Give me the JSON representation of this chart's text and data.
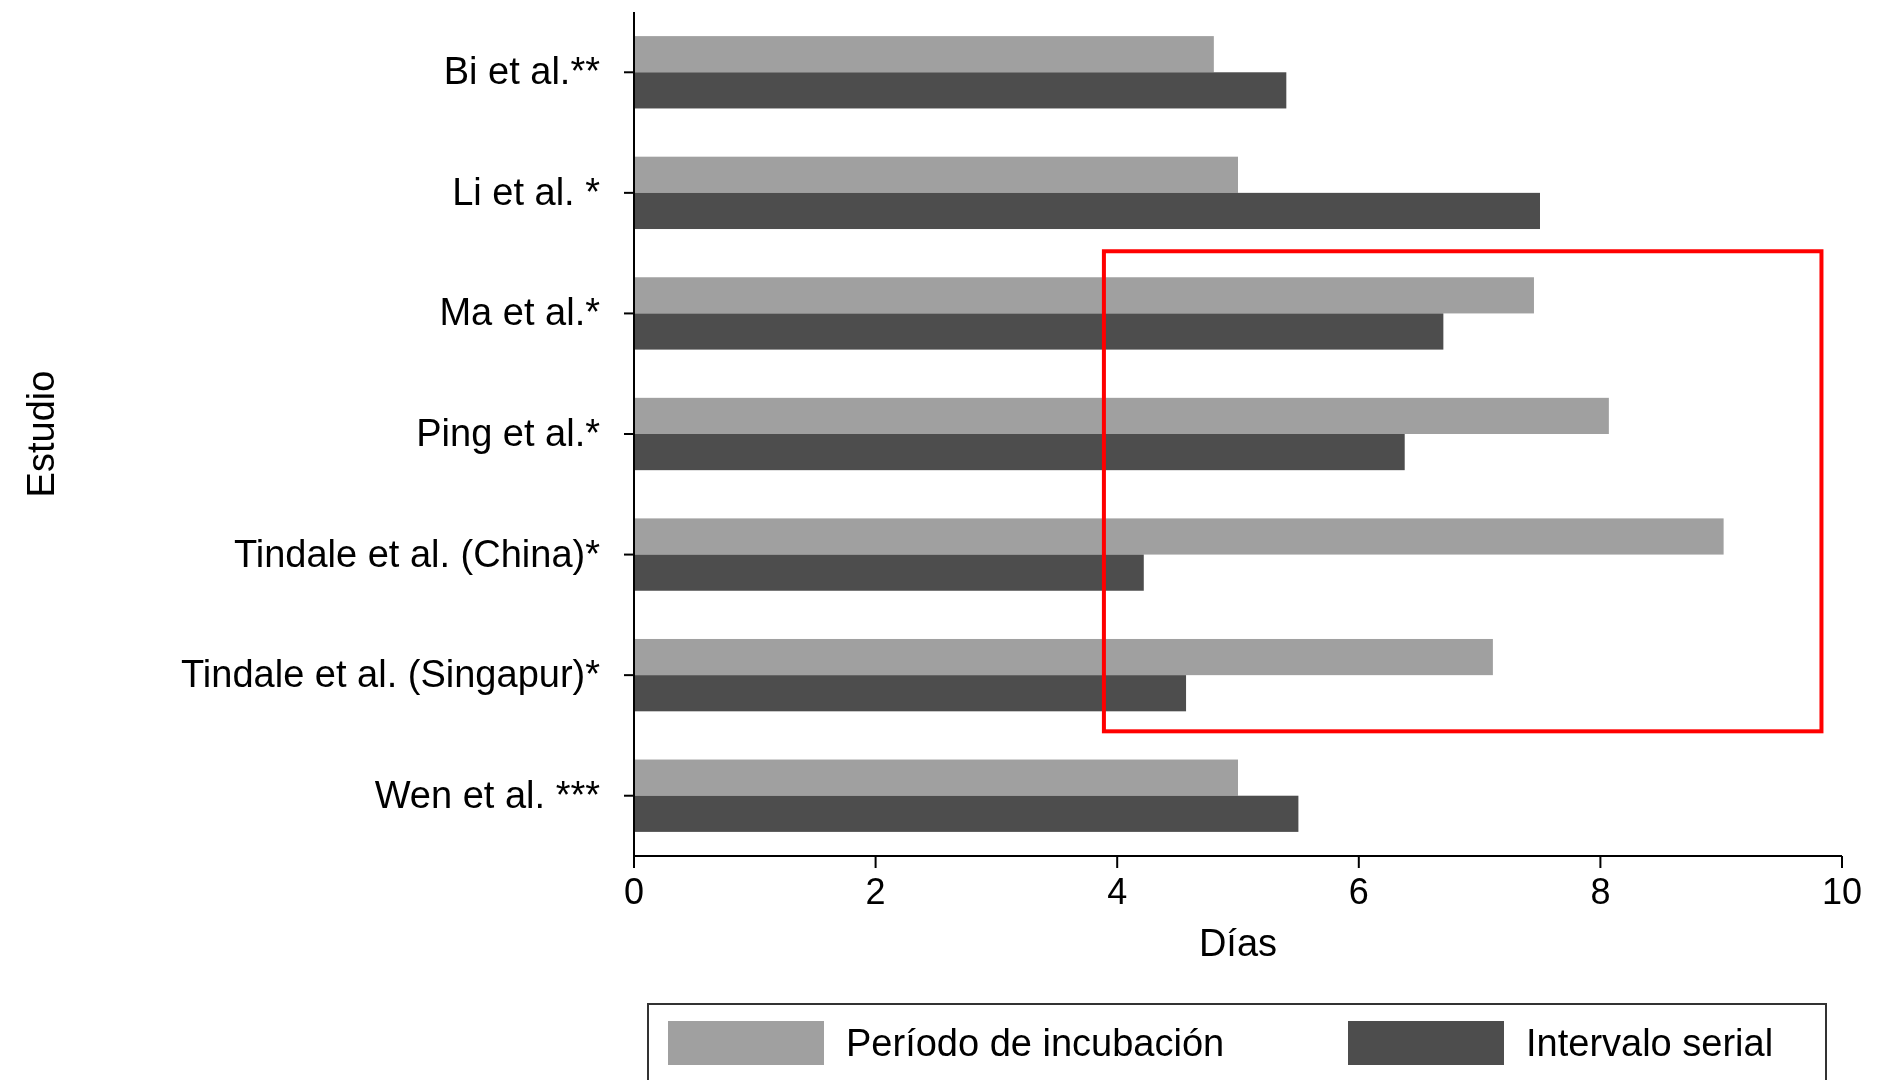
{
  "chart_data": {
    "type": "bar",
    "orientation": "horizontal",
    "xlabel": "Días",
    "ylabel": "Estudio",
    "categories": [
      "Bi et al.**",
      "Li et al. *",
      "Ma et al.*",
      "Ping et al.*",
      "Tindale et al. (China)*",
      "Tindale et al. (Singapur)*",
      "Wen et al. ***"
    ],
    "series": [
      {
        "name": "Período de incubación",
        "color": "#a0a0a0",
        "values": [
          4.8,
          5.0,
          7.45,
          8.07,
          9.02,
          7.11,
          5.0
        ]
      },
      {
        "name": "Intervalo serial",
        "color": "#4d4d4d",
        "values": [
          5.4,
          7.5,
          6.7,
          6.38,
          4.22,
          4.57,
          5.5
        ]
      }
    ],
    "xlim": [
      0,
      10
    ],
    "xticks": [
      0,
      2,
      4,
      6,
      8,
      10
    ],
    "grid": false,
    "legend": "bottom"
  }
}
